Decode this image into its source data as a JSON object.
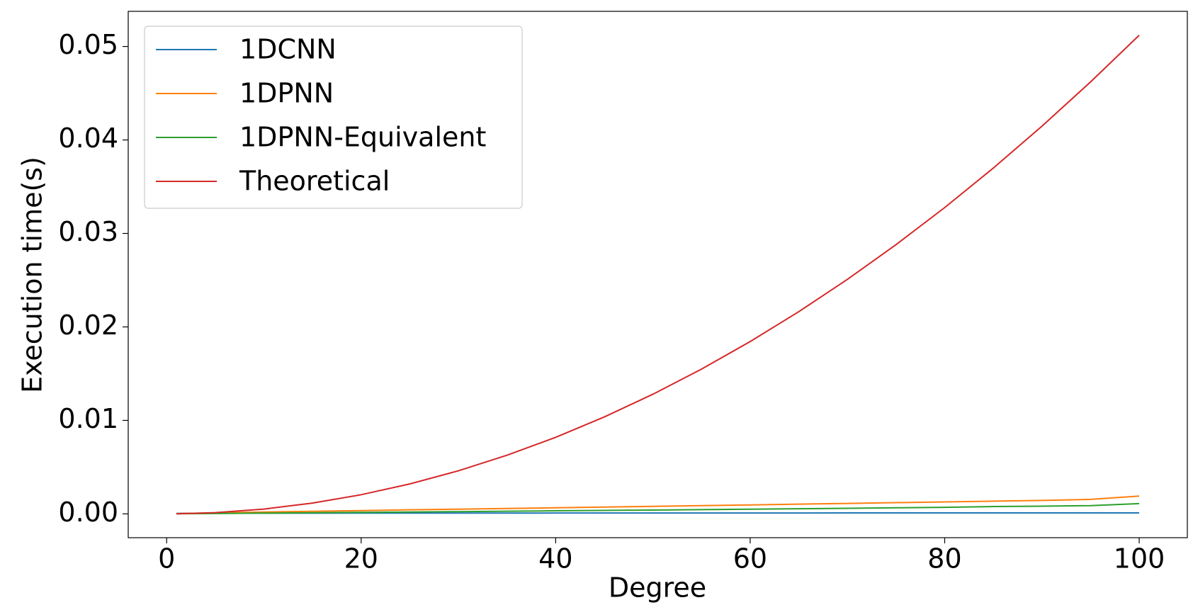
{
  "chart_data": {
    "type": "line",
    "x_label": "Degree",
    "y_label": "Execution time(s)",
    "x": [
      1,
      5,
      10,
      15,
      20,
      25,
      30,
      35,
      40,
      45,
      50,
      55,
      60,
      65,
      70,
      75,
      80,
      85,
      90,
      95,
      100
    ],
    "series": [
      {
        "name": "1DCNN",
        "color": "#1f77b4",
        "values": [
          5e-05,
          6e-05,
          7e-05,
          7e-05,
          8e-05,
          8e-05,
          8e-05,
          8e-05,
          9e-05,
          9e-05,
          9e-05,
          9e-05,
          9e-05,
          9e-05,
          0.0001,
          0.0001,
          0.0001,
          0.0001,
          0.0001,
          0.0001,
          0.0001
        ]
      },
      {
        "name": "1DPNN",
        "color": "#ff7f0e",
        "values": [
          3e-05,
          0.0001,
          0.0002,
          0.00027,
          0.00035,
          0.00043,
          0.0005,
          0.00058,
          0.00065,
          0.00073,
          0.0008,
          0.00088,
          0.00096,
          0.00104,
          0.00112,
          0.0012,
          0.00128,
          0.00136,
          0.00144,
          0.00155,
          0.0019
        ]
      },
      {
        "name": "1DPNN-Equivalent",
        "color": "#2ca02c",
        "values": [
          1e-05,
          4e-05,
          8e-05,
          0.00012,
          0.00016,
          0.0002,
          0.00024,
          0.00028,
          0.00033,
          0.00037,
          0.00041,
          0.00045,
          0.0005,
          0.00055,
          0.0006,
          0.00065,
          0.0007,
          0.00078,
          0.00082,
          0.00088,
          0.0011
        ]
      },
      {
        "name": "Theoretical",
        "color": "#d62728",
        "values": [
          5e-06,
          0.000128,
          0.000512,
          0.001152,
          0.002048,
          0.0032,
          0.004608,
          0.006272,
          0.008192,
          0.010368,
          0.0128,
          0.015488,
          0.018432,
          0.021632,
          0.025088,
          0.0288,
          0.032768,
          0.036992,
          0.041472,
          0.046208,
          0.0512
        ]
      }
    ],
    "xlim": [
      -3.95,
      104.95
    ],
    "xticks": [
      0,
      20,
      40,
      60,
      80,
      100
    ],
    "ylim": [
      -0.00255,
      0.05376
    ],
    "yticks": [
      {
        "value": 0,
        "label": "0.00"
      },
      {
        "value": 0.01,
        "label": "0.01"
      },
      {
        "value": 0.02,
        "label": "0.02"
      },
      {
        "value": 0.03,
        "label": "0.03"
      },
      {
        "value": 0.04,
        "label": "0.04"
      },
      {
        "value": 0.05,
        "label": "0.05"
      }
    ],
    "legend": "upper-left",
    "grid": false
  }
}
